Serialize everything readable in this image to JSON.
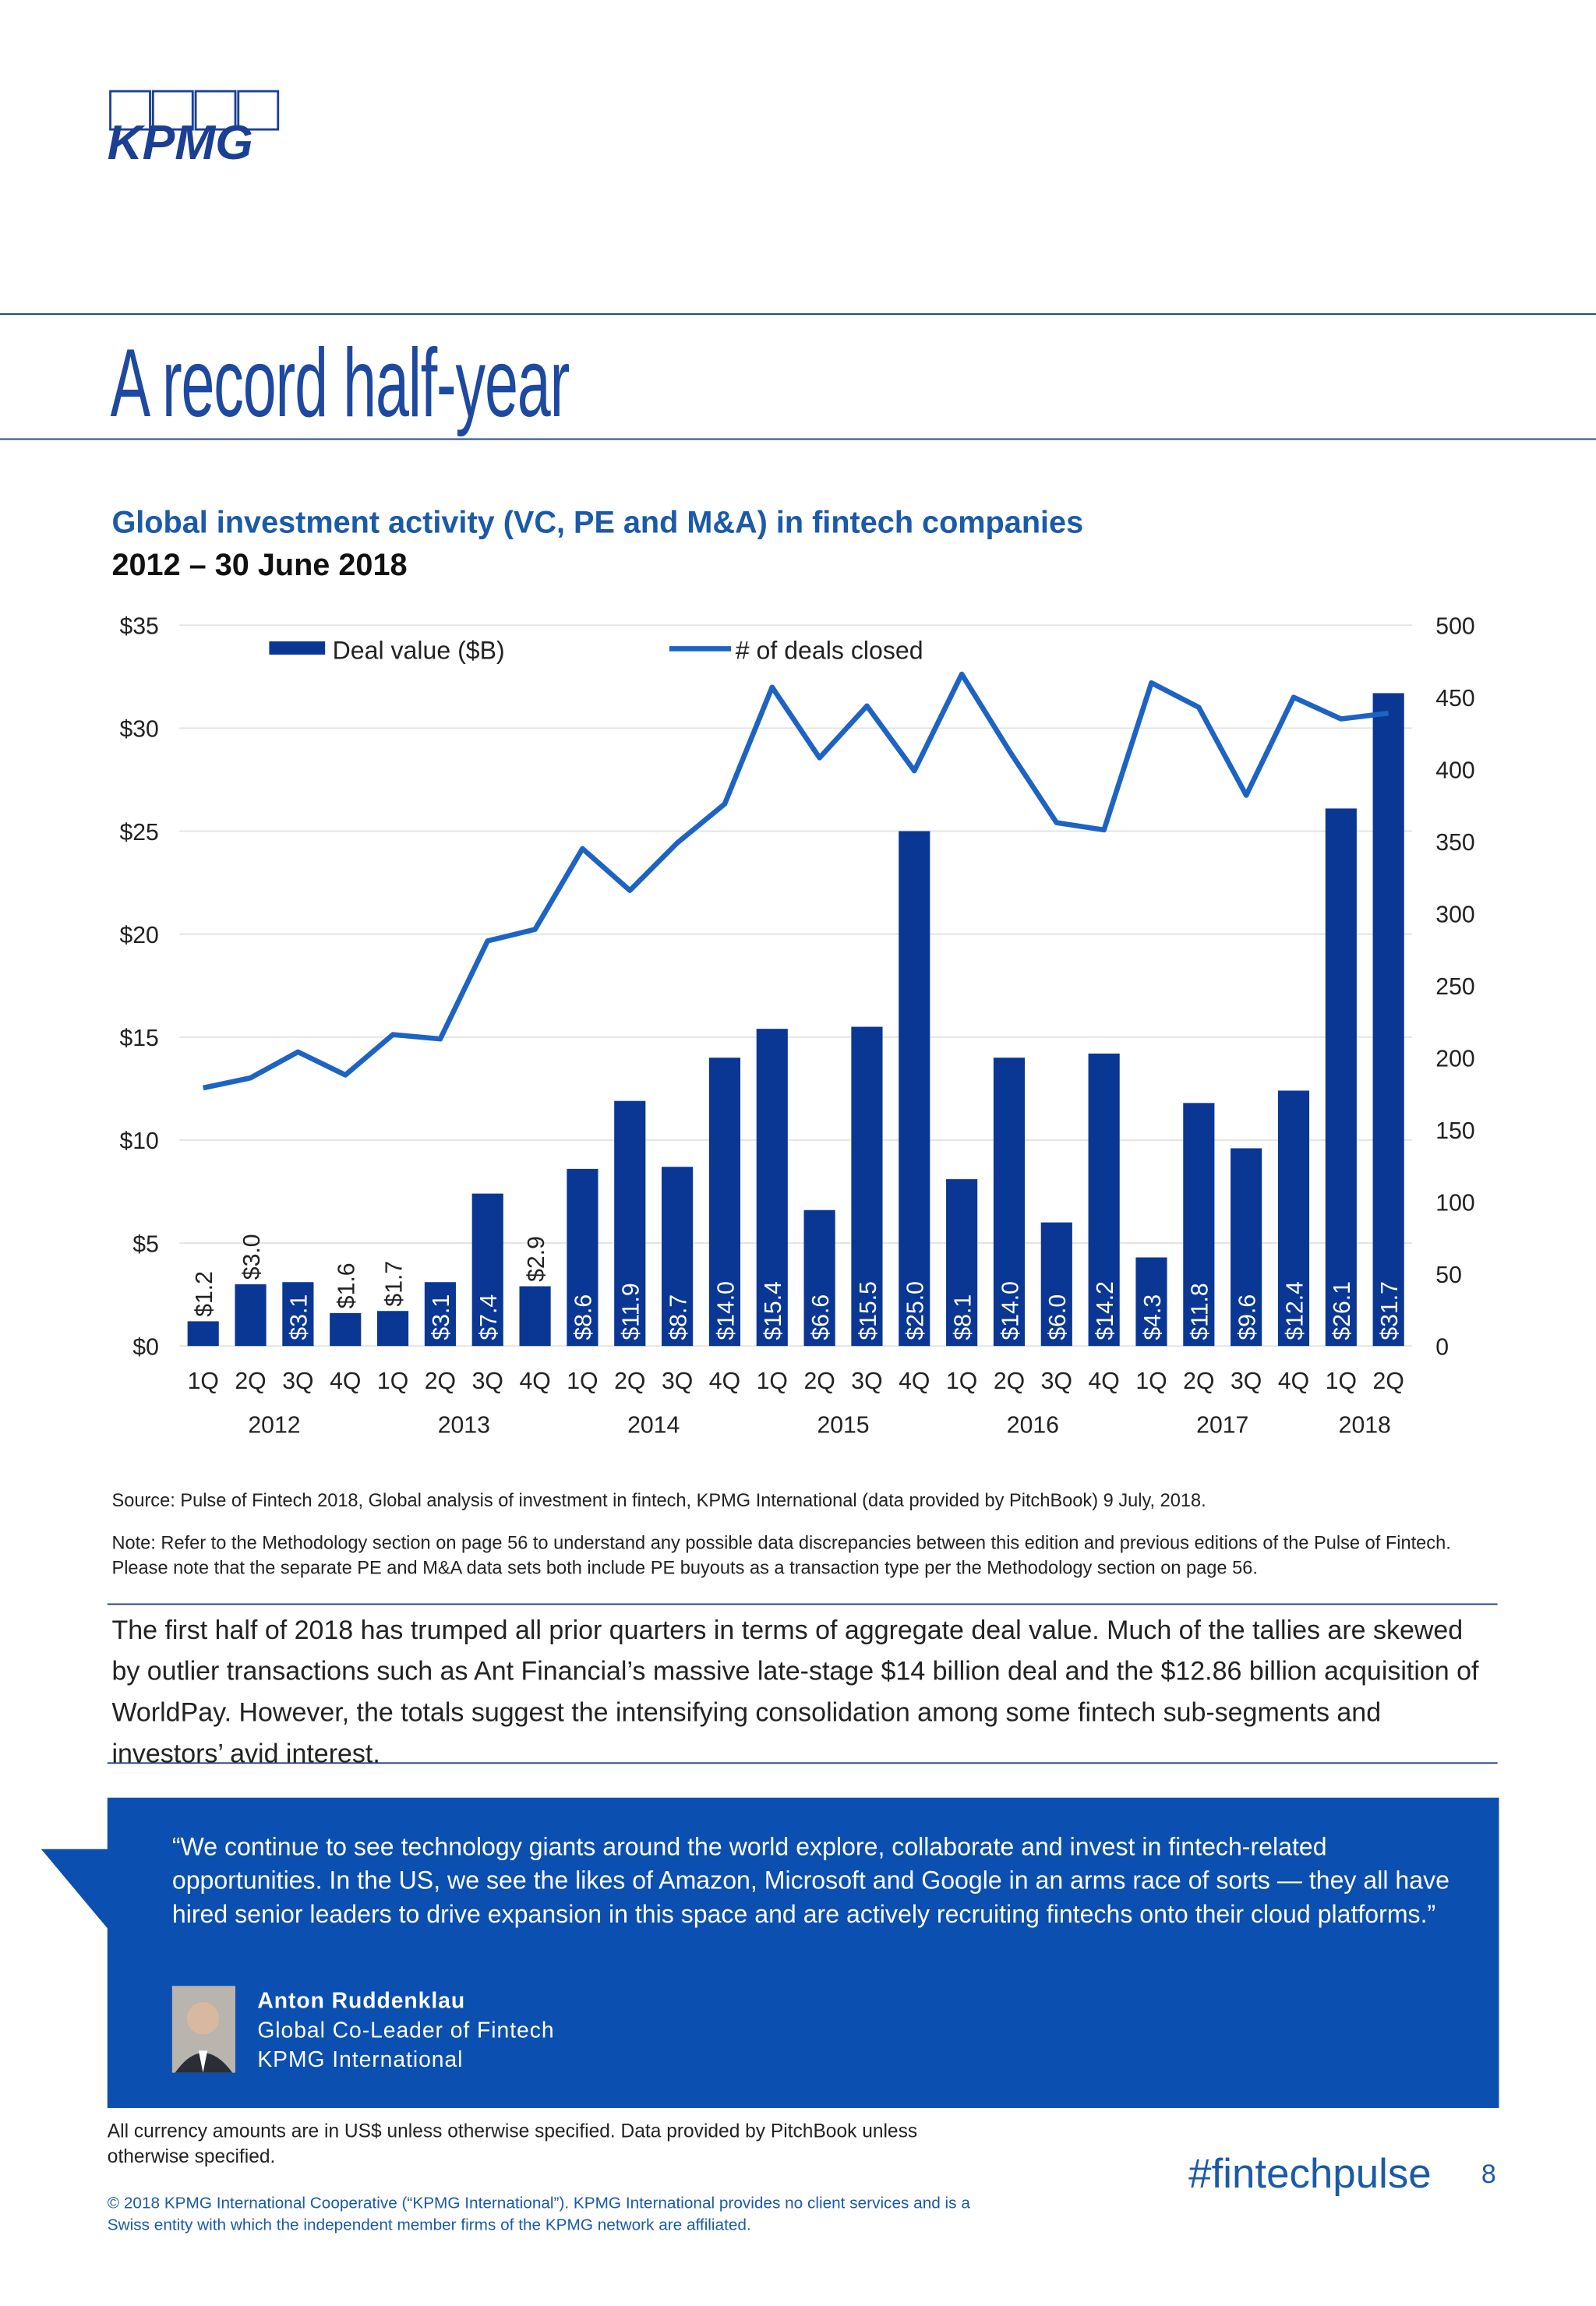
{
  "header": {
    "logo": "KPMG",
    "title": "A record half-year"
  },
  "chart_data": {
    "type": "bar_line",
    "title": "Global investment activity (VC, PE and M&A) in fintech companies",
    "subtitle": "2012 – 30 June 2018",
    "categories": [
      "1Q",
      "2Q",
      "3Q",
      "4Q",
      "1Q",
      "2Q",
      "3Q",
      "4Q",
      "1Q",
      "2Q",
      "3Q",
      "4Q",
      "1Q",
      "2Q",
      "3Q",
      "4Q",
      "1Q",
      "2Q",
      "3Q",
      "4Q",
      "1Q",
      "2Q",
      "3Q",
      "4Q",
      "1Q",
      "2Q"
    ],
    "years": [
      "2012",
      "2013",
      "2014",
      "2015",
      "2016",
      "2017",
      "2018"
    ],
    "series": [
      {
        "name": "Deal value ($B)",
        "type": "bar",
        "color": "#0a3794",
        "values": [
          1.2,
          3.0,
          3.1,
          1.6,
          1.7,
          3.1,
          7.4,
          2.9,
          8.6,
          11.9,
          8.7,
          14.0,
          15.4,
          6.6,
          15.5,
          25.0,
          8.1,
          14.0,
          6.0,
          14.2,
          4.3,
          11.8,
          9.6,
          12.4,
          26.1,
          31.7
        ],
        "value_labels": [
          "$1.2",
          "$3.0",
          "$3.1",
          "$1.6",
          "$1.7",
          "$3.1",
          "$7.4",
          "$2.9",
          "$8.6",
          "$11.9",
          "$8.7",
          "$14.0",
          "$15.4",
          "$6.6",
          "$15.5",
          "$25.0",
          "$8.1",
          "$14.0",
          "$6.0",
          "$14.2",
          "$4.3",
          "$11.8",
          "$9.6",
          "$12.4",
          "$26.1",
          "$31.7"
        ]
      },
      {
        "name": "# of deals closed",
        "type": "line",
        "axis": "y2",
        "color": "#1d63c4",
        "values": [
          179,
          186,
          204,
          188,
          216,
          213,
          281,
          289,
          345,
          316,
          349,
          376,
          457,
          408,
          444,
          399,
          466,
          413,
          363,
          358,
          460,
          443,
          382,
          450,
          435,
          439
        ]
      }
    ],
    "ylim": [
      0,
      35
    ],
    "yticks": [
      {
        "value": 0,
        "label": "$0"
      },
      {
        "value": 5,
        "label": "$5"
      },
      {
        "value": 10,
        "label": "$10"
      },
      {
        "value": 15,
        "label": "$15"
      },
      {
        "value": 20,
        "label": "$20"
      },
      {
        "value": 25,
        "label": "$25"
      },
      {
        "value": 30,
        "label": "$30"
      },
      {
        "value": 35,
        "label": "$35"
      }
    ],
    "y2lim": [
      0,
      500
    ],
    "y2ticks": [
      0,
      50,
      100,
      150,
      200,
      250,
      300,
      350,
      400,
      450,
      500
    ],
    "grid": true,
    "legend": "top"
  },
  "source": "Source: Pulse of Fintech 2018, Global analysis of investment in fintech, KPMG International (data provided by PitchBook) 9 July, 2018.",
  "note": "Note: Refer to the Methodology section on page 56 to understand any possible data discrepancies between this edition and previous editions of the Pulse of Fintech. Please note that the separate PE and M&A data sets both include PE buyouts as a transaction type per the Methodology section on page 56.",
  "paragraph": "The first half of 2018 has trumped all prior quarters in terms of aggregate deal value. Much of the tallies are skewed by outlier transactions such as Ant Financial’s massive late-stage $14 billion deal and the $12.86 billion acquisition of WorldPay. However, the totals suggest the intensifying consolidation among some fintech sub-segments and investors’ avid interest.",
  "quote": {
    "text": "“We continue to see technology giants around the world explore, collaborate and invest in fintech-related opportunities. In the US, we see the likes of Amazon, Microsoft and Google in an arms race of sorts — they all have hired senior leaders to drive expansion in this space and are actively recruiting fintechs onto their cloud platforms.”",
    "name": "Anton Ruddenklau",
    "role": "Global Co-Leader of Fintech",
    "org": "KPMG International"
  },
  "footer": {
    "note": "All currency amounts are in US$ unless otherwise specified. Data provided by PitchBook unless otherwise specified.",
    "hashtag": "#fintechpulse",
    "page": "8",
    "copyright": "© 2018 KPMG International Cooperative (“KPMG International”). KPMG International provides no client services and is a Swiss entity with which the independent member firms of the KPMG network are affiliated."
  }
}
